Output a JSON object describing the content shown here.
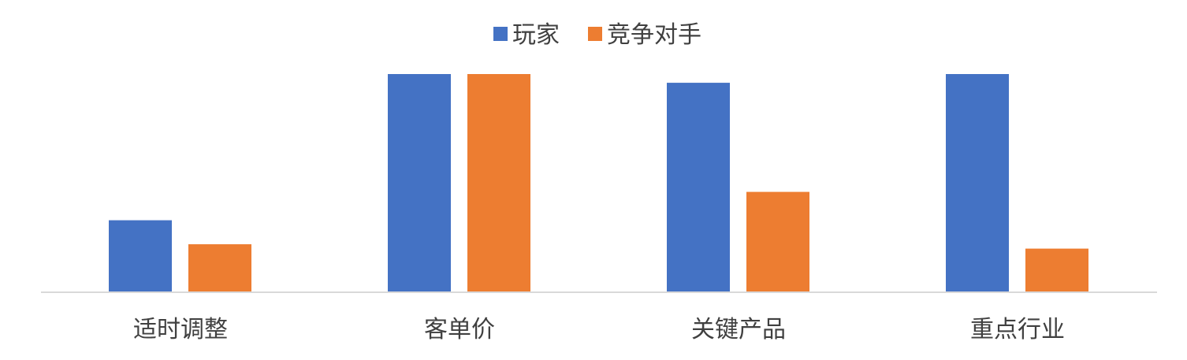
{
  "chart_data": {
    "type": "bar",
    "categories": [
      "适时调整",
      "客单价",
      "关键产品",
      "重点行业"
    ],
    "series": [
      {
        "name": "玩家",
        "color": "#4472C4",
        "values": [
          33,
          100,
          96,
          100
        ]
      },
      {
        "name": "竞争对手",
        "color": "#ED7D31",
        "values": [
          22,
          100,
          46,
          20
        ]
      }
    ],
    "ylim": [
      0,
      100
    ],
    "grid": false,
    "legend": "top-center",
    "axis_color": "#D9D9D9"
  }
}
